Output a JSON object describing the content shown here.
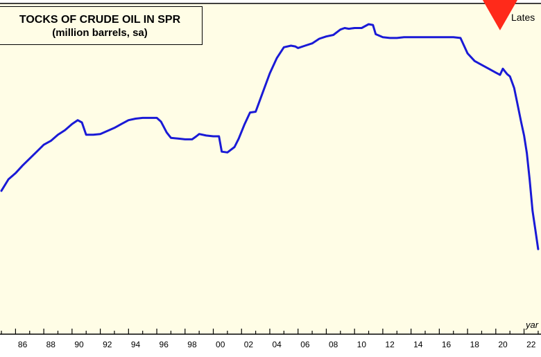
{
  "title_line1": "TOCKS OF CRUDE OIL IN SPR",
  "title_line2": "(million barrels, sa)",
  "latest_label": "Lates",
  "source_label": "yar",
  "colors": {
    "background": "#fffde6",
    "line": "#1a1ad6",
    "marker": "#ff2a1a"
  },
  "chart_data": {
    "type": "line",
    "title": "TOCKS OF CRUDE OIL IN SPR",
    "subtitle": "(million barrels, sa)",
    "xlabel": "",
    "ylabel": "",
    "grid": false,
    "xlim": [
      1984.9,
      2023.2
    ],
    "ylim": [
      330,
      740
    ],
    "tick_years": [
      1986,
      1988,
      1990,
      1992,
      1994,
      1996,
      1998,
      2000,
      2002,
      2004,
      2006,
      2008,
      2010,
      2012,
      2014,
      2016,
      2018,
      2020,
      2022
    ],
    "tick_labels": [
      "86",
      "88",
      "90",
      "92",
      "94",
      "96",
      "98",
      "00",
      "02",
      "04",
      "06",
      "08",
      "10",
      "12",
      "14",
      "16",
      "18",
      "20",
      "22"
    ],
    "marker": {
      "shape": "down-triangle",
      "x": 2020.3,
      "y": 705
    },
    "series": [
      {
        "x": [
          1985.0,
          1985.5,
          1986.0,
          1986.5,
          1987.0,
          1987.5,
          1988.0,
          1988.5,
          1989.0,
          1989.5,
          1990.0,
          1990.4,
          1990.7,
          1991.0,
          1991.5,
          1992.0,
          1992.5,
          1993.0,
          1993.5,
          1994.0,
          1994.5,
          1995.0,
          1995.5,
          1996.0,
          1996.3,
          1996.7,
          1997.0,
          1997.5,
          1998.0,
          1998.5,
          1998.8,
          1999.0,
          1999.5,
          2000.0,
          2000.4,
          2000.6,
          2001.0,
          2001.5,
          2001.8,
          2002.2,
          2002.6,
          2003.0,
          2003.5,
          2004.0,
          2004.5,
          2005.0,
          2005.5,
          2005.8,
          2006.0,
          2006.5,
          2007.0,
          2007.5,
          2008.0,
          2008.5,
          2009.0,
          2009.3,
          2009.6,
          2010.0,
          2010.5,
          2011.0,
          2011.3,
          2011.5,
          2012.0,
          2012.5,
          2013.0,
          2013.5,
          2014.0,
          2014.5,
          2015.0,
          2015.5,
          2016.0,
          2016.5,
          2017.0,
          2017.5,
          2018.0,
          2018.5,
          2019.0,
          2019.5,
          2020.0,
          2020.3,
          2020.5,
          2020.8,
          2021.0,
          2021.3,
          2021.5,
          2021.8,
          2022.0,
          2022.2,
          2022.4,
          2022.6,
          2022.8,
          2023.0
        ],
        "values": [
          496,
          511,
          519,
          529,
          538,
          547,
          556,
          561,
          569,
          575,
          583,
          588,
          585,
          569,
          569,
          570,
          574,
          578,
          583,
          588,
          590,
          591,
          591,
          591,
          586,
          572,
          565,
          564,
          563,
          563,
          567,
          570,
          568,
          567,
          567,
          547,
          546,
          553,
          564,
          582,
          598,
          599,
          624,
          649,
          669,
          683,
          685,
          684,
          682,
          685,
          688,
          694,
          697,
          699,
          706,
          708,
          707,
          708,
          708,
          713,
          712,
          700,
          696,
          695,
          695,
          696,
          696,
          696,
          696,
          696,
          696,
          696,
          696,
          695,
          675,
          665,
          660,
          655,
          650,
          647,
          655,
          648,
          645,
          630,
          612,
          585,
          568,
          545,
          510,
          470,
          445,
          420
        ]
      }
    ]
  }
}
